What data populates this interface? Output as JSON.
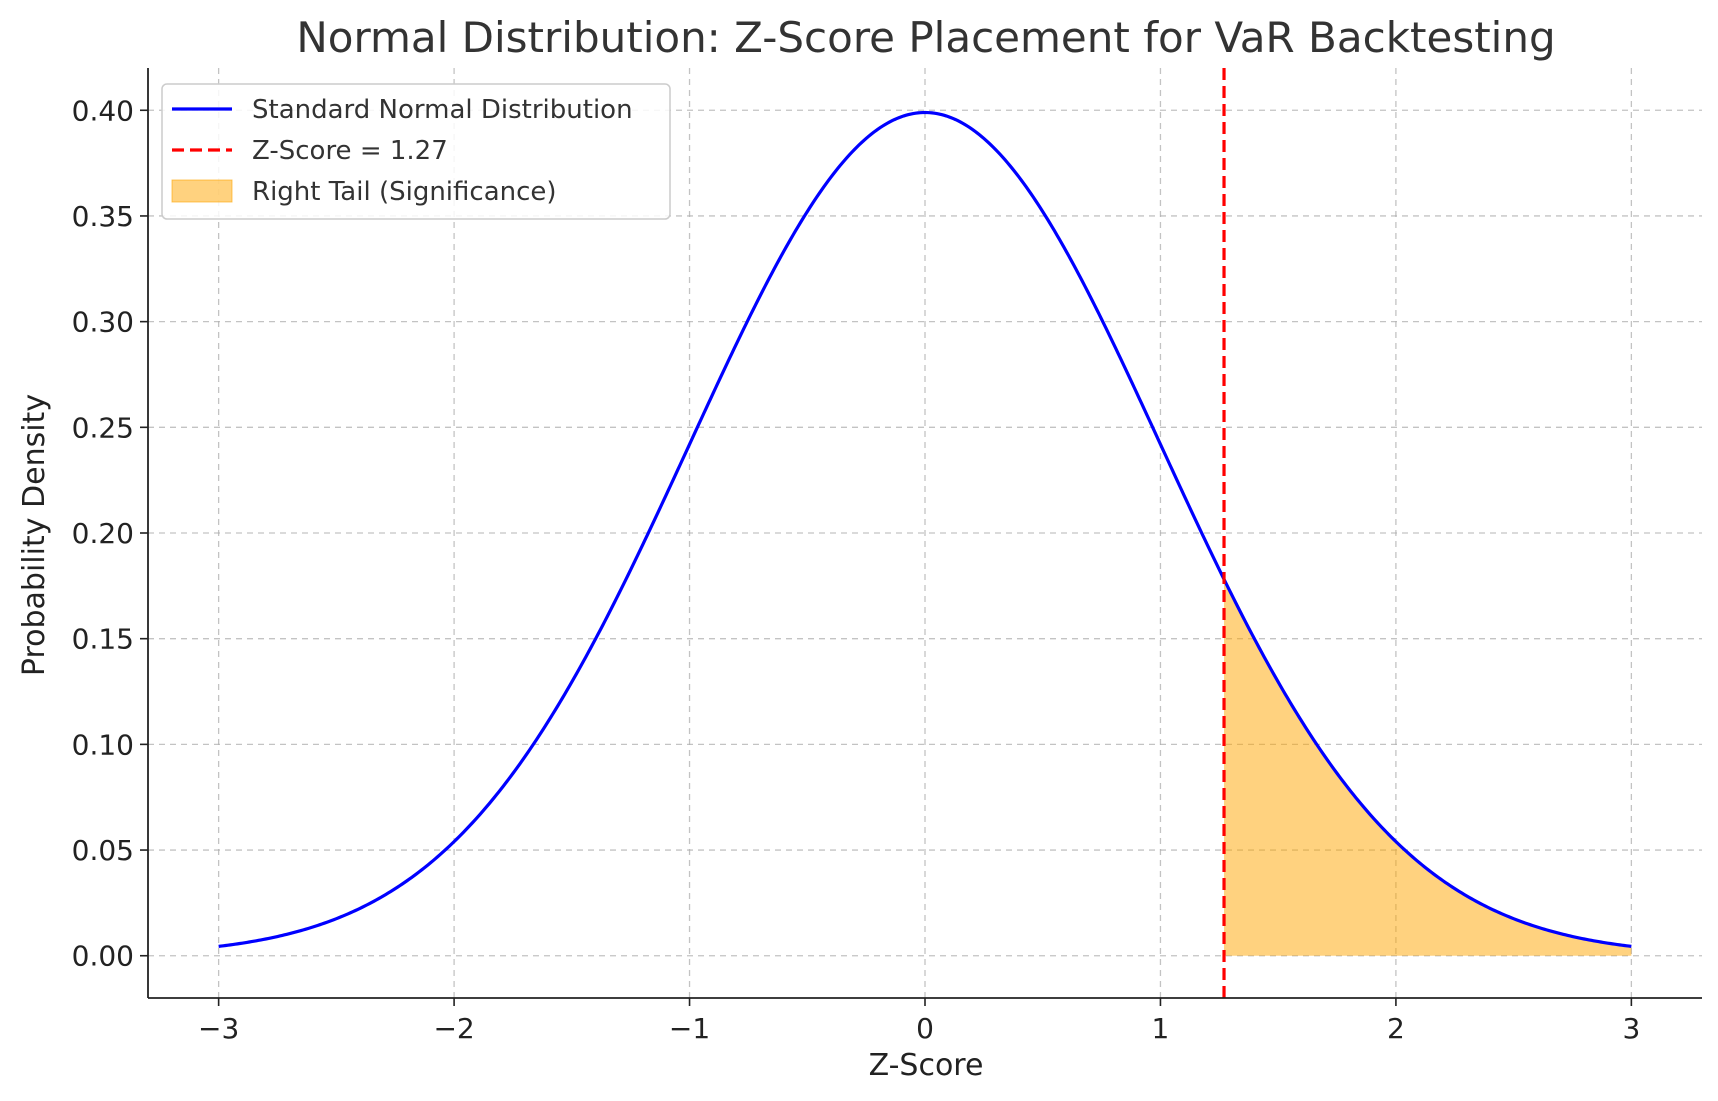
{
  "chart_data": {
    "type": "line",
    "title": "Normal Distribution: Z-Score Placement for VaR Backtesting",
    "xlabel": "Z-Score",
    "ylabel": "Probability Density",
    "xlim": [
      -3.3,
      3.3
    ],
    "ylim": [
      -0.02,
      0.42
    ],
    "xticks": [
      -3,
      -2,
      -1,
      0,
      1,
      2,
      3
    ],
    "xtick_labels": [
      "−3",
      "−2",
      "−1",
      "0",
      "1",
      "2",
      "3"
    ],
    "yticks": [
      0.0,
      0.05,
      0.1,
      0.15,
      0.2,
      0.25,
      0.3,
      0.35,
      0.4
    ],
    "ytick_labels": [
      "0.00",
      "0.05",
      "0.10",
      "0.15",
      "0.20",
      "0.25",
      "0.30",
      "0.35",
      "0.40"
    ],
    "grid": true,
    "legend_position": "top-left",
    "series": [
      {
        "name": "Standard Normal Distribution",
        "kind": "line",
        "color": "#0000ff",
        "x": [
          -3.0,
          -2.5,
          -2.0,
          -1.5,
          -1.0,
          -0.5,
          0.0,
          0.5,
          1.0,
          1.5,
          2.0,
          2.5,
          3.0
        ],
        "y": [
          0.0044,
          0.0175,
          0.054,
          0.1295,
          0.242,
          0.3521,
          0.3989,
          0.3521,
          0.242,
          0.1295,
          0.054,
          0.0175,
          0.0044
        ]
      },
      {
        "name": "Z-Score = 1.27",
        "kind": "vline",
        "color": "#ff0000",
        "x": 1.27
      },
      {
        "name": "Right Tail (Significance)",
        "kind": "fill",
        "color": "#ffa500",
        "x_from": 1.27,
        "x_to": 3.0
      }
    ]
  }
}
